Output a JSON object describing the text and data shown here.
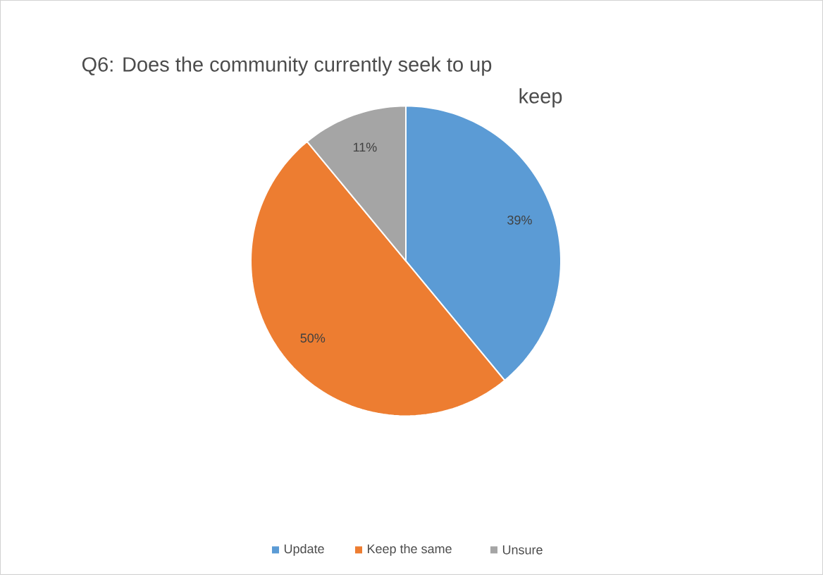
{
  "chart_data": {
    "type": "pie",
    "title": "Q6: Does the community currently seek to up",
    "subtitle": "keep",
    "categories": [
      "Update",
      "Keep the same",
      "Unsure"
    ],
    "values": [
      39,
      50,
      11
    ],
    "value_labels": [
      "39%",
      "50%",
      "11%"
    ],
    "colors": [
      "#5b9bd5",
      "#ed7d31",
      "#a5a5a5"
    ],
    "legend": "bottom"
  }
}
